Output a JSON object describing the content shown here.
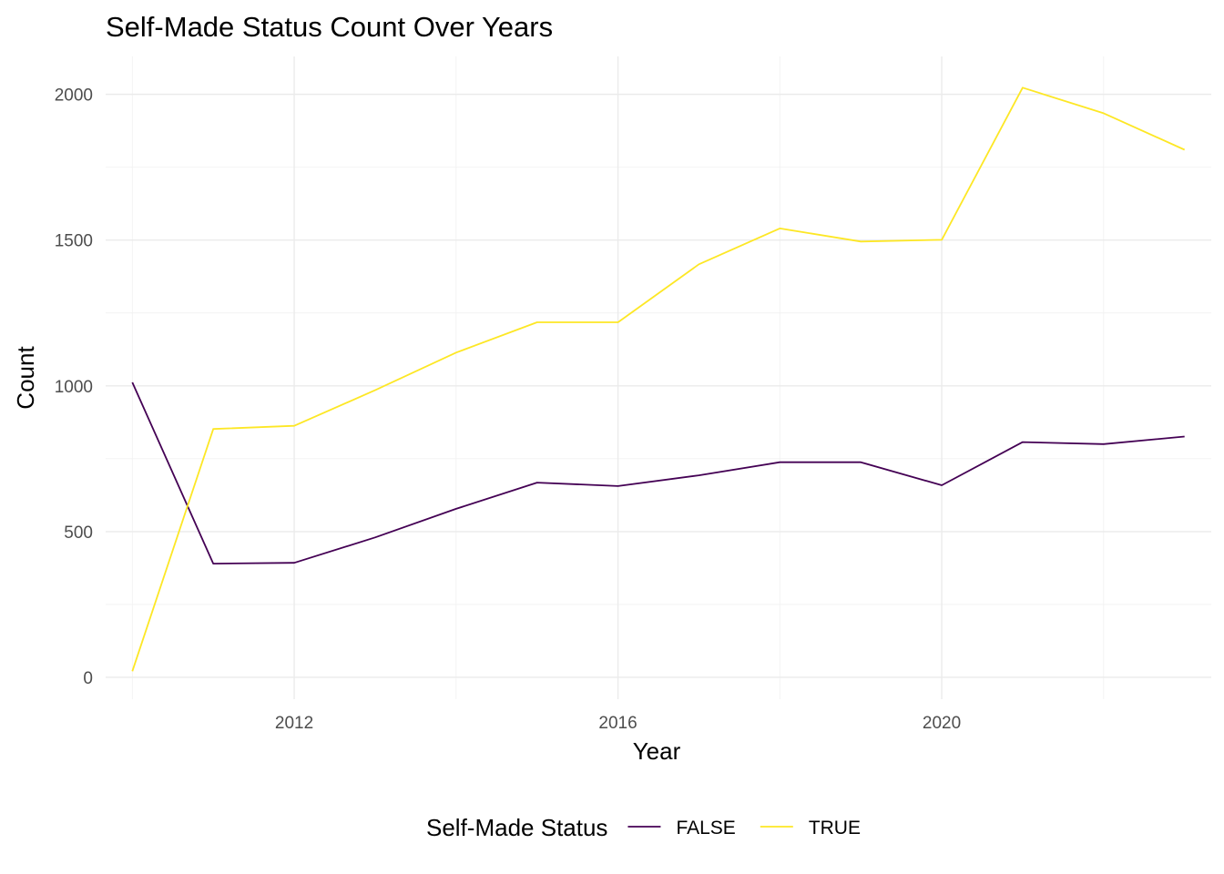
{
  "chart_data": {
    "type": "line",
    "title": "Self-Made Status Count Over Years",
    "xlabel": "Year",
    "ylabel": "Count",
    "x": [
      2010,
      2011,
      2012,
      2013,
      2014,
      2015,
      2016,
      2017,
      2018,
      2019,
      2020,
      2021,
      2022,
      2023
    ],
    "xlim": [
      2009.67,
      2023.33
    ],
    "ylim": [
      -75,
      2130
    ],
    "x_ticks": [
      2012,
      2016,
      2020
    ],
    "x_tick_labels": [
      "2012",
      "2016",
      "2020"
    ],
    "y_ticks": [
      0,
      500,
      1000,
      1500,
      2000
    ],
    "y_tick_labels": [
      "0",
      "500",
      "1000",
      "1500",
      "2000"
    ],
    "grid": true,
    "legend": {
      "title": "Self-Made Status",
      "position": "bottom"
    },
    "series": [
      {
        "name": "FALSE",
        "color": "#440154",
        "values": [
          1012,
          390,
          393,
          480,
          578,
          668,
          656,
          693,
          738,
          738,
          659,
          807,
          800,
          826
        ]
      },
      {
        "name": "TRUE",
        "color": "#fde725",
        "values": [
          21,
          852,
          863,
          985,
          1114,
          1218,
          1218,
          1417,
          1540,
          1495,
          1501,
          2023,
          1935,
          1810
        ]
      }
    ]
  }
}
